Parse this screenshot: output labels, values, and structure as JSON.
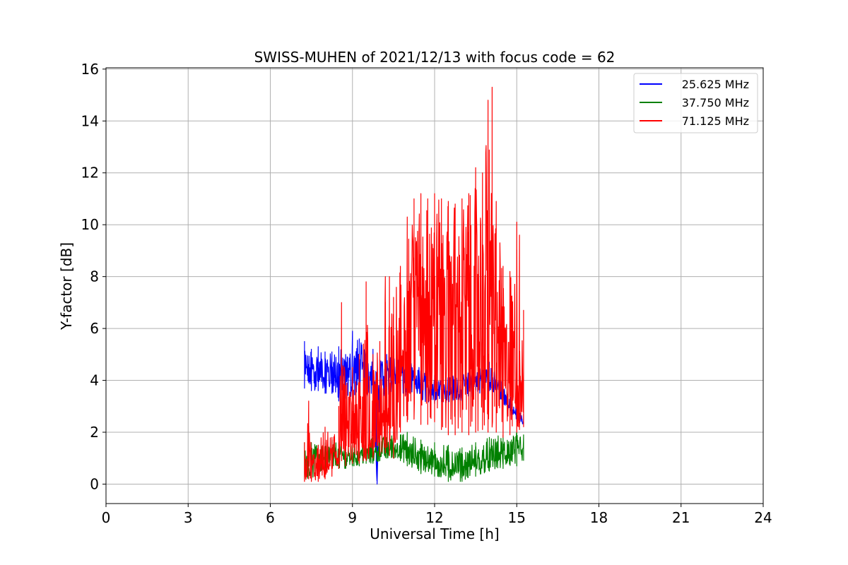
{
  "chart_data": {
    "type": "line",
    "title": "SWISS-MUHEN of 2021/12/13 with focus code = 62",
    "xlabel": "Universal Time [h]",
    "ylabel": "Y-factor [dB]",
    "xlim": [
      0,
      24
    ],
    "ylim": [
      -0.75,
      16.05
    ],
    "xticks": [
      0,
      3,
      6,
      9,
      12,
      15,
      18,
      21,
      24
    ],
    "yticks": [
      0,
      2,
      4,
      6,
      8,
      10,
      12,
      14,
      16
    ],
    "grid": true,
    "legend_position": "top-right",
    "series": [
      {
        "name": "25.625 MHz",
        "color": "#0000ff",
        "x": [
          7.25,
          7.5,
          7.75,
          8.0,
          8.25,
          8.5,
          8.75,
          9.0,
          9.25,
          9.5,
          9.75,
          9.9,
          10.0,
          10.25,
          10.5,
          10.75,
          11.0,
          12.0,
          13.0,
          14.0,
          15.0,
          15.25
        ],
        "y": [
          4.3,
          4.4,
          4.3,
          4.2,
          4.3,
          4.1,
          4.3,
          4.2,
          4.4,
          4.2,
          4.3,
          0.0,
          4.3,
          4.3,
          4.4,
          4.3,
          4.2,
          3.6,
          3.7,
          4.3,
          2.6,
          2.4
        ],
        "low": [
          3.7,
          3.6,
          3.6,
          3.5,
          3.5,
          3.2,
          3.3,
          3.3,
          3.4,
          3.3,
          3.4,
          0.0,
          3.4,
          3.4,
          3.5,
          3.4,
          3.3,
          3.1,
          3.2,
          3.6,
          2.4,
          2.3
        ],
        "high": [
          5.5,
          5.2,
          5.3,
          5.1,
          5.1,
          5.3,
          5.0,
          5.9,
          5.6,
          5.3,
          5.2,
          4.3,
          4.8,
          5.0,
          5.1,
          5.1,
          4.8,
          4.2,
          4.2,
          4.7,
          3.0,
          2.7
        ]
      },
      {
        "name": "37.750 MHz",
        "color": "#008000",
        "x": [
          7.25,
          7.5,
          7.75,
          8.0,
          8.25,
          8.5,
          8.75,
          9.0,
          9.25,
          9.5,
          9.75,
          10.0,
          10.25,
          10.5,
          10.75,
          11.0,
          11.5,
          12.0,
          12.5,
          13.0,
          13.5,
          14.0,
          14.5,
          15.0,
          15.25
        ],
        "y": [
          0.9,
          0.9,
          1.0,
          1.0,
          1.1,
          1.0,
          1.0,
          1.1,
          1.1,
          1.2,
          1.2,
          1.3,
          1.3,
          1.4,
          1.3,
          1.1,
          1.0,
          0.8,
          0.7,
          0.7,
          0.8,
          0.9,
          1.1,
          1.2,
          1.3
        ],
        "low": [
          0.2,
          0.2,
          0.4,
          0.5,
          0.6,
          0.6,
          0.6,
          0.7,
          0.7,
          0.8,
          0.8,
          0.9,
          1.0,
          1.0,
          0.9,
          0.7,
          0.4,
          0.3,
          0.1,
          0.1,
          0.3,
          0.5,
          0.6,
          0.7,
          0.9
        ],
        "high": [
          1.6,
          1.6,
          1.5,
          1.6,
          1.7,
          1.6,
          1.5,
          1.6,
          1.7,
          1.7,
          1.8,
          1.9,
          1.8,
          2.0,
          1.9,
          2.0,
          1.7,
          1.6,
          1.5,
          1.4,
          1.6,
          1.8,
          1.9,
          2.0,
          1.9
        ]
      },
      {
        "name": "71.125 MHz",
        "color": "#ff0000",
        "x": [
          7.25,
          7.4,
          7.5,
          7.75,
          8.0,
          8.25,
          8.5,
          8.6,
          8.75,
          9.0,
          9.25,
          9.4,
          9.5,
          9.75,
          10.0,
          10.2,
          10.35,
          10.5,
          10.75,
          11.0,
          11.25,
          11.5,
          11.75,
          12.0,
          12.25,
          12.5,
          12.75,
          13.0,
          13.25,
          13.5,
          13.75,
          13.95,
          14.1,
          14.25,
          14.5,
          14.75,
          15.0,
          15.1,
          15.25
        ],
        "y": [
          0.6,
          0.8,
          0.7,
          0.6,
          0.8,
          0.9,
          1.2,
          1.8,
          1.5,
          1.6,
          1.7,
          2.0,
          1.8,
          2.0,
          2.2,
          2.8,
          2.5,
          2.7,
          4.5,
          7.0,
          7.5,
          7.5,
          7.4,
          7.3,
          7.0,
          7.0,
          6.8,
          6.6,
          6.5,
          6.3,
          6.0,
          6.5,
          7.0,
          6.0,
          4.5,
          4.2,
          4.0,
          4.5,
          3.5
        ],
        "low": [
          0.1,
          0.2,
          0.1,
          0.1,
          0.2,
          0.3,
          0.6,
          0.9,
          0.7,
          0.8,
          0.8,
          0.9,
          0.9,
          1.0,
          1.1,
          1.2,
          1.1,
          1.0,
          2.0,
          2.4,
          2.5,
          2.3,
          2.3,
          2.4,
          2.1,
          1.9,
          1.9,
          2.0,
          1.9,
          2.0,
          2.1,
          2.0,
          2.2,
          2.0,
          1.8,
          1.9,
          2.0,
          2.1,
          2.2
        ],
        "high": [
          1.6,
          3.2,
          1.4,
          1.5,
          2.2,
          1.8,
          3.0,
          7.0,
          3.8,
          4.5,
          5.0,
          5.4,
          7.8,
          5.0,
          5.5,
          8.0,
          8.0,
          7.2,
          8.4,
          10.3,
          11.0,
          11.2,
          11.0,
          11.2,
          11.0,
          10.9,
          10.8,
          11.0,
          11.2,
          12.2,
          12.0,
          14.8,
          15.3,
          10.9,
          8.4,
          8.2,
          10.1,
          9.6,
          6.7
        ]
      }
    ]
  }
}
